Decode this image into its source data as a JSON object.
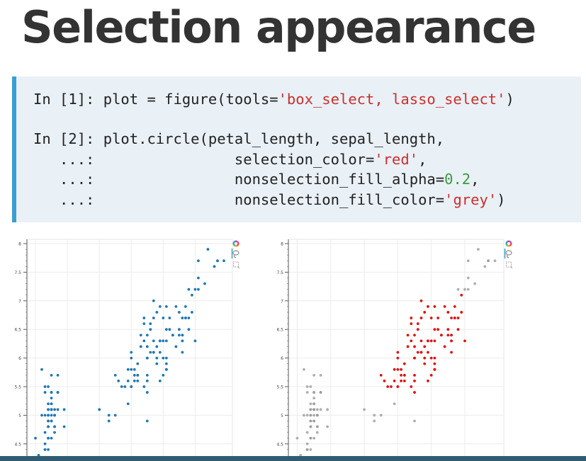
{
  "title": "Selection appearance",
  "code": {
    "line1": {
      "prompt": "In [1]: ",
      "text": "plot = figure(tools=",
      "str": "'box_select, lasso_select'",
      "end": ")"
    },
    "line2": {
      "prompt": "In [2]: ",
      "text": "plot.circle(petal_length, sepal_length,"
    },
    "line3": {
      "prompt": "   ...:",
      "pad": "                ",
      "text": "selection_color=",
      "str": "'red'",
      "end": ","
    },
    "line4": {
      "prompt": "   ...:",
      "pad": "                ",
      "text": "nonselection_fill_alpha=",
      "num": "0.2",
      "end": ","
    },
    "line5": {
      "prompt": "   ...:",
      "pad": "                ",
      "text": "nonselection_fill_color=",
      "str": "'grey'",
      "end": ")"
    }
  },
  "colors": {
    "normal": "#1f77b4",
    "selected": "#dd1111",
    "nonselected": "#9a9a9a",
    "toolbar_accent": "#3a9fd1"
  },
  "toolbar": {
    "icons": [
      "bokeh-logo-icon",
      "lasso-select-icon",
      "box-select-icon"
    ]
  },
  "chart_data": [
    {
      "type": "scatter",
      "name": "",
      "ylim": [
        4.3,
        8.1
      ],
      "xlim": [
        0.8,
        7.1
      ],
      "yticks": [
        "4.5",
        "5",
        "5.5",
        "6",
        "6.5",
        "7",
        "7.5",
        "8"
      ],
      "selection": "none",
      "points": [
        [
          1.4,
          5.1
        ],
        [
          1.4,
          4.9
        ],
        [
          1.3,
          4.7
        ],
        [
          1.5,
          4.6
        ],
        [
          1.4,
          5.0
        ],
        [
          1.7,
          5.4
        ],
        [
          1.4,
          4.6
        ],
        [
          1.5,
          5.0
        ],
        [
          1.4,
          4.4
        ],
        [
          1.5,
          4.9
        ],
        [
          1.5,
          5.4
        ],
        [
          1.6,
          4.8
        ],
        [
          1.4,
          4.8
        ],
        [
          1.1,
          4.3
        ],
        [
          1.2,
          5.8
        ],
        [
          1.5,
          5.7
        ],
        [
          1.3,
          5.4
        ],
        [
          1.4,
          5.1
        ],
        [
          1.7,
          5.7
        ],
        [
          1.5,
          5.1
        ],
        [
          1.7,
          5.4
        ],
        [
          1.5,
          5.1
        ],
        [
          1.0,
          4.6
        ],
        [
          1.7,
          5.1
        ],
        [
          1.9,
          4.8
        ],
        [
          1.6,
          5.0
        ],
        [
          1.6,
          5.0
        ],
        [
          1.5,
          5.2
        ],
        [
          1.4,
          5.2
        ],
        [
          1.6,
          4.7
        ],
        [
          1.6,
          4.8
        ],
        [
          1.5,
          5.4
        ],
        [
          1.5,
          5.2
        ],
        [
          1.4,
          5.5
        ],
        [
          1.5,
          4.9
        ],
        [
          1.2,
          5.0
        ],
        [
          1.3,
          5.5
        ],
        [
          1.4,
          4.9
        ],
        [
          1.3,
          4.4
        ],
        [
          1.5,
          5.1
        ],
        [
          1.3,
          5.0
        ],
        [
          1.3,
          4.5
        ],
        [
          1.3,
          4.4
        ],
        [
          1.6,
          5.0
        ],
        [
          1.9,
          5.1
        ],
        [
          1.4,
          4.8
        ],
        [
          1.6,
          5.1
        ],
        [
          1.4,
          4.6
        ],
        [
          1.5,
          5.3
        ],
        [
          1.4,
          5.0
        ],
        [
          4.7,
          7.0
        ],
        [
          4.5,
          6.4
        ],
        [
          4.9,
          6.9
        ],
        [
          4.0,
          5.5
        ],
        [
          4.6,
          6.5
        ],
        [
          4.5,
          5.7
        ],
        [
          4.7,
          6.3
        ],
        [
          3.3,
          4.9
        ],
        [
          4.6,
          6.6
        ],
        [
          3.9,
          5.2
        ],
        [
          3.5,
          5.0
        ],
        [
          4.2,
          5.9
        ],
        [
          4.0,
          6.0
        ],
        [
          4.7,
          6.1
        ],
        [
          3.6,
          5.6
        ],
        [
          4.4,
          6.7
        ],
        [
          4.5,
          5.6
        ],
        [
          4.1,
          5.8
        ],
        [
          4.5,
          6.2
        ],
        [
          3.9,
          5.6
        ],
        [
          4.8,
          5.9
        ],
        [
          4.0,
          6.1
        ],
        [
          4.9,
          6.3
        ],
        [
          4.7,
          6.1
        ],
        [
          4.3,
          6.4
        ],
        [
          4.4,
          6.6
        ],
        [
          4.8,
          6.8
        ],
        [
          5.0,
          6.7
        ],
        [
          4.5,
          6.0
        ],
        [
          3.5,
          5.7
        ],
        [
          3.8,
          5.5
        ],
        [
          3.7,
          5.5
        ],
        [
          3.9,
          5.8
        ],
        [
          5.1,
          6.0
        ],
        [
          4.5,
          5.4
        ],
        [
          4.5,
          6.0
        ],
        [
          4.7,
          6.7
        ],
        [
          4.4,
          6.3
        ],
        [
          4.1,
          5.6
        ],
        [
          4.0,
          5.5
        ],
        [
          4.4,
          5.5
        ],
        [
          4.6,
          6.1
        ],
        [
          4.0,
          5.8
        ],
        [
          3.3,
          5.0
        ],
        [
          4.2,
          5.6
        ],
        [
          4.2,
          5.7
        ],
        [
          4.2,
          5.7
        ],
        [
          4.3,
          6.2
        ],
        [
          3.0,
          5.1
        ],
        [
          4.1,
          5.7
        ],
        [
          6.0,
          6.3
        ],
        [
          5.1,
          5.8
        ],
        [
          5.9,
          7.1
        ],
        [
          5.6,
          6.3
        ],
        [
          5.8,
          6.5
        ],
        [
          6.6,
          7.6
        ],
        [
          4.5,
          4.9
        ],
        [
          6.3,
          7.3
        ],
        [
          5.8,
          6.7
        ],
        [
          6.1,
          7.2
        ],
        [
          5.1,
          6.5
        ],
        [
          5.3,
          6.4
        ],
        [
          5.5,
          6.8
        ],
        [
          5.0,
          5.7
        ],
        [
          5.1,
          5.8
        ],
        [
          5.3,
          6.4
        ],
        [
          5.5,
          6.5
        ],
        [
          6.7,
          7.7
        ],
        [
          6.9,
          7.7
        ],
        [
          5.0,
          6.0
        ],
        [
          5.7,
          6.9
        ],
        [
          4.9,
          5.6
        ],
        [
          6.7,
          7.7
        ],
        [
          4.9,
          6.3
        ],
        [
          5.7,
          6.7
        ],
        [
          6.0,
          7.2
        ],
        [
          4.8,
          6.2
        ],
        [
          4.9,
          6.1
        ],
        [
          5.6,
          6.4
        ],
        [
          5.8,
          7.2
        ],
        [
          6.1,
          7.4
        ],
        [
          6.4,
          7.9
        ],
        [
          5.6,
          6.4
        ],
        [
          5.1,
          6.3
        ],
        [
          5.6,
          6.1
        ],
        [
          6.1,
          7.7
        ],
        [
          5.6,
          6.3
        ],
        [
          5.5,
          6.4
        ],
        [
          4.8,
          6.0
        ],
        [
          5.4,
          6.9
        ],
        [
          5.6,
          6.7
        ],
        [
          5.1,
          6.9
        ],
        [
          5.1,
          5.8
        ],
        [
          5.9,
          6.8
        ],
        [
          5.7,
          6.7
        ],
        [
          5.2,
          6.7
        ],
        [
          5.0,
          6.3
        ],
        [
          5.2,
          6.5
        ],
        [
          5.4,
          6.2
        ],
        [
          5.1,
          5.9
        ]
      ]
    },
    {
      "type": "scatter",
      "name": "",
      "ylim": [
        4.3,
        8.1
      ],
      "xlim": [
        0.8,
        7.1
      ],
      "yticks": [
        "4.5",
        "5",
        "5.5",
        "6",
        "6.5",
        "7",
        "7.5",
        "8"
      ],
      "selection": "petal_length 3.5 to 6.0, sepal_length 5.3 to 7.1",
      "selected_region": {
        "x": [
          3.5,
          6.0
        ],
        "y": [
          5.3,
          7.1
        ]
      }
    }
  ]
}
